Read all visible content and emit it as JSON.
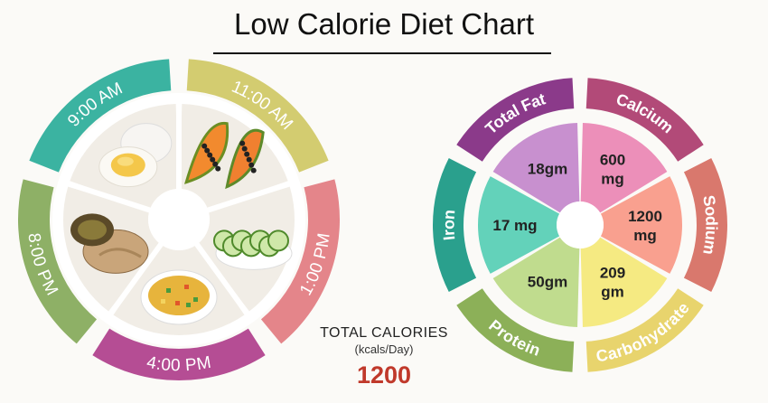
{
  "title": "Low Calorie Diet Chart",
  "totals": {
    "label": "TOTAL CALORIES",
    "unit": "(kcals/Day)",
    "value": "1200"
  },
  "schedule": [
    {
      "time": "9:00 AM",
      "color": "#3bb3a1",
      "food": "boiled-eggs"
    },
    {
      "time": "11:00 AM",
      "color": "#d3cc70",
      "food": "papaya"
    },
    {
      "time": "1:00 PM",
      "color": "#e4858a",
      "food": "cucumber-salad"
    },
    {
      "time": "4:00 PM",
      "color": "#b54d94",
      "food": "vegetable-soup"
    },
    {
      "time": "8:00 PM",
      "color": "#8eb066",
      "food": "roti-and-curry"
    }
  ],
  "nutrients": [
    {
      "name": "Total Fat",
      "value": "18gm",
      "ring_color": "#8b3a8a",
      "fill_color": "#c890cf"
    },
    {
      "name": "Calcium",
      "value": "600\nmg",
      "ring_color": "#b24a78",
      "fill_color": "#ec8fb9"
    },
    {
      "name": "Sodium",
      "value": "1200\nmg",
      "ring_color": "#d9786d",
      "fill_color": "#f9a08f"
    },
    {
      "name": "Carbohydrate",
      "value": "209\ngm",
      "ring_color": "#e8d46d",
      "fill_color": "#f5ea82"
    },
    {
      "name": "Protein",
      "value": "50gm",
      "ring_color": "#8cb058",
      "fill_color": "#c0dc8e"
    },
    {
      "name": "Iron",
      "value": "17 mg",
      "ring_color": "#2aa08d",
      "fill_color": "#63d2ba"
    }
  ]
}
